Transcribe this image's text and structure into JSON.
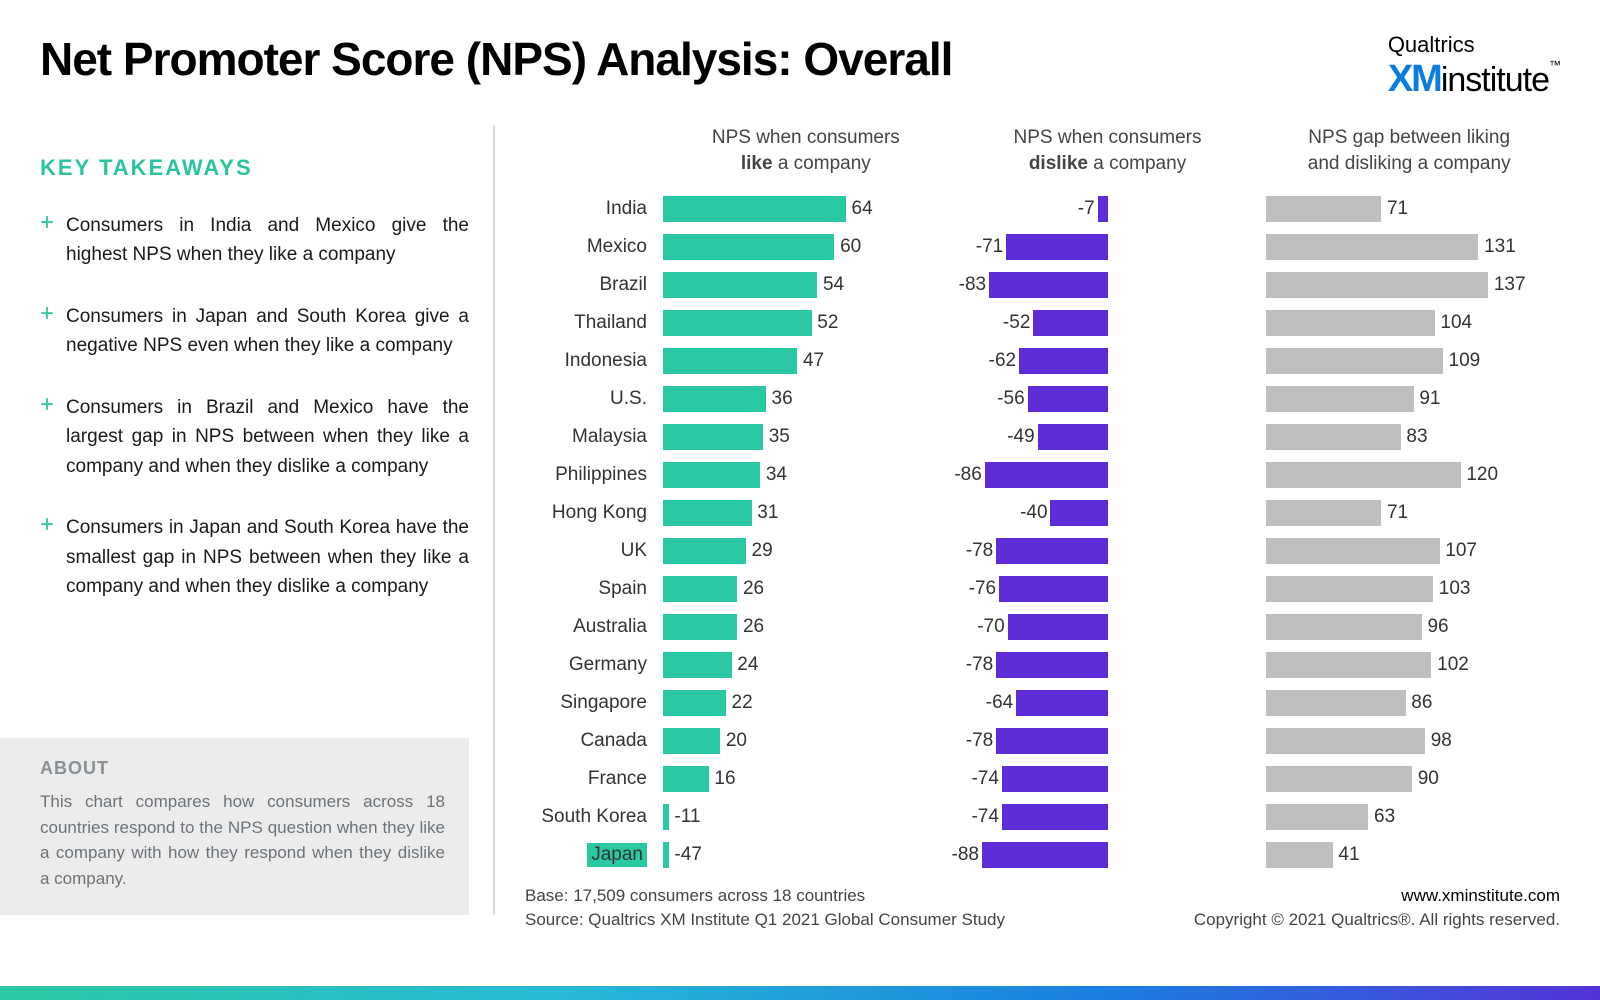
{
  "title": "Net Promoter Score (NPS) Analysis: Overall",
  "logo": {
    "top": "Qualtrics",
    "xm": "XM",
    "inst": "institute",
    "tm": "™"
  },
  "key_takeaways_heading": "KEY TAKEAWAYS",
  "takeaways": [
    "Consumers in India and Mexico give the highest NPS when they like a company",
    "Consumers in Japan and South Korea give a negative NPS even when they like a company",
    "Consumers in Brazil and Mexico have the largest gap in NPS between when they like a company and when they dislike a company",
    "Consumers in Japan and South Korea have the smallest gap in NPS between when they like a company and when they dislike a company"
  ],
  "about_heading": "ABOUT",
  "about_text": "This chart compares how consumers across 18 countries respond to the NPS question when they like a company with how they respond when they dislike a company.",
  "chart_headers": {
    "like_l1": "NPS when consumers",
    "like_l2a": "like",
    "like_l2b": " a company",
    "dislike_l1": "NPS when consumers",
    "dislike_l2a": "dislike",
    "dislike_l2b": " a company",
    "gap_l1": "NPS gap between liking",
    "gap_l2": "and disliking a company"
  },
  "chart": {
    "like_max": 100,
    "dislike_max": 100,
    "gap_max": 150,
    "colors": {
      "like": "#2bc9a3",
      "dislike": "#5e2dd8",
      "gap": "#bfbfbf"
    },
    "countries": [
      {
        "name": "India",
        "like": 64,
        "dislike": -7,
        "gap": 71
      },
      {
        "name": "Mexico",
        "like": 60,
        "dislike": -71,
        "gap": 131
      },
      {
        "name": "Brazil",
        "like": 54,
        "dislike": -83,
        "gap": 137
      },
      {
        "name": "Thailand",
        "like": 52,
        "dislike": -52,
        "gap": 104
      },
      {
        "name": "Indonesia",
        "like": 47,
        "dislike": -62,
        "gap": 109
      },
      {
        "name": "U.S.",
        "like": 36,
        "dislike": -56,
        "gap": 91
      },
      {
        "name": "Malaysia",
        "like": 35,
        "dislike": -49,
        "gap": 83
      },
      {
        "name": "Philippines",
        "like": 34,
        "dislike": -86,
        "gap": 120
      },
      {
        "name": "Hong Kong",
        "like": 31,
        "dislike": -40,
        "gap": 71
      },
      {
        "name": "UK",
        "like": 29,
        "dislike": -78,
        "gap": 107
      },
      {
        "name": "Spain",
        "like": 26,
        "dislike": -76,
        "gap": 103
      },
      {
        "name": "Australia",
        "like": 26,
        "dislike": -70,
        "gap": 96
      },
      {
        "name": "Germany",
        "like": 24,
        "dislike": -78,
        "gap": 102
      },
      {
        "name": "Singapore",
        "like": 22,
        "dislike": -64,
        "gap": 86
      },
      {
        "name": "Canada",
        "like": 20,
        "dislike": -78,
        "gap": 98
      },
      {
        "name": "France",
        "like": 16,
        "dislike": -74,
        "gap": 90
      },
      {
        "name": "South Korea",
        "like": -11,
        "dislike": -74,
        "gap": 63
      },
      {
        "name": "Japan",
        "like": -47,
        "dislike": -88,
        "gap": 41
      }
    ]
  },
  "footer": {
    "base": "Base: 17,509 consumers across 18 countries",
    "source": "Source: Qualtrics XM Institute Q1 2021 Global Consumer Study",
    "url": "www.xminstitute.com",
    "copyright": "Copyright © 2021 Qualtrics®. All rights reserved."
  }
}
